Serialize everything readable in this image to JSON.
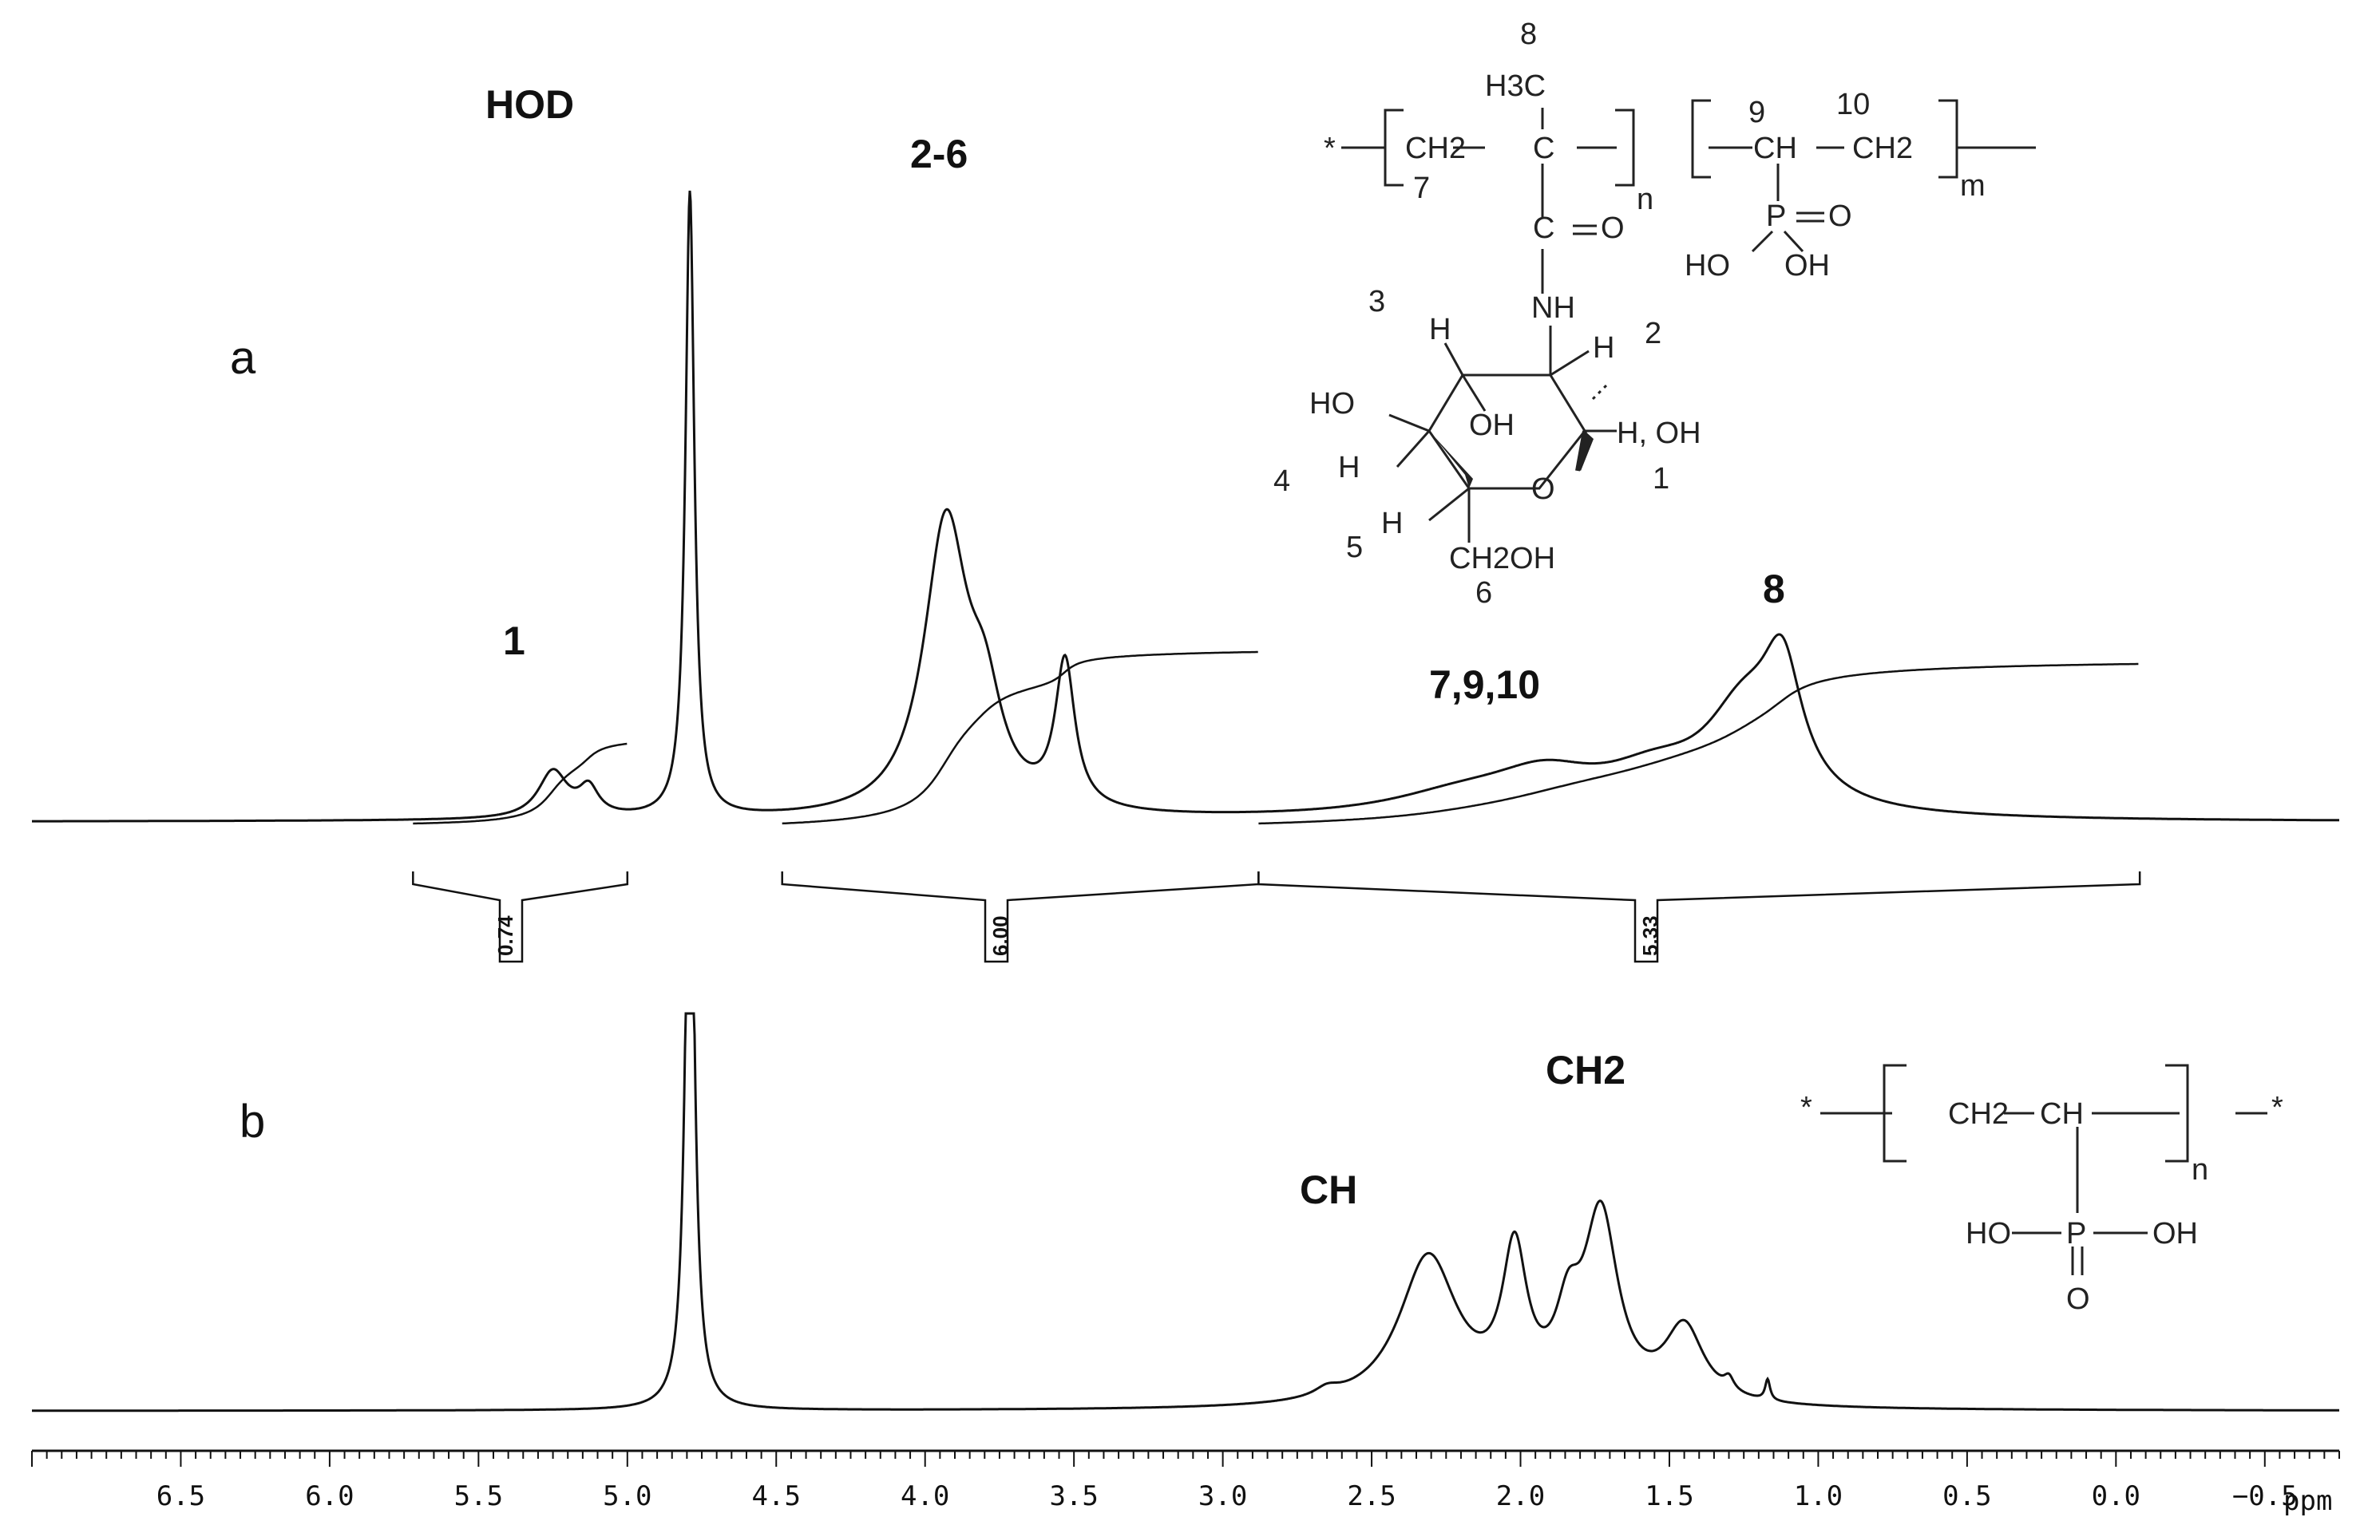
{
  "chart_data": {
    "type": "line",
    "title": "",
    "xlabel": "ppm",
    "ylabel": "",
    "x_reversed": true,
    "xlim": [
      7.0,
      -0.75
    ],
    "x_ticks": [
      "6.5",
      "6.0",
      "5.5",
      "5.0",
      "4.5",
      "4.0",
      "3.5",
      "3.0",
      "2.5",
      "2.0",
      "1.5",
      "1.0",
      "0.5",
      "0.0",
      "−0.5"
    ],
    "x_tick_values": [
      6.5,
      6.0,
      5.5,
      5.0,
      4.5,
      4.0,
      3.5,
      3.0,
      2.5,
      2.0,
      1.5,
      1.0,
      0.5,
      0.0,
      -0.5
    ],
    "grid": false,
    "panels": [
      {
        "label": "a",
        "baseline_ppm_range": [
          7.0,
          -0.75
        ],
        "peaks": [
          {
            "ppm": 5.25,
            "height": 0.12,
            "width": 0.06
          },
          {
            "ppm": 5.13,
            "height": 0.07,
            "width": 0.04
          },
          {
            "ppm": 4.79,
            "height": 1.6,
            "width": 0.018,
            "clipped": true
          },
          {
            "ppm": 3.93,
            "height": 0.74,
            "width": 0.09
          },
          {
            "ppm": 3.8,
            "height": 0.22,
            "width": 0.07
          },
          {
            "ppm": 3.53,
            "height": 0.37,
            "width": 0.04
          },
          {
            "ppm": 2.2,
            "height": 0.05,
            "width": 0.3
          },
          {
            "ppm": 1.92,
            "height": 0.09,
            "width": 0.22
          },
          {
            "ppm": 1.55,
            "height": 0.09,
            "width": 0.22
          },
          {
            "ppm": 1.25,
            "height": 0.24,
            "width": 0.16
          },
          {
            "ppm": 1.12,
            "height": 0.3,
            "width": 0.08
          }
        ],
        "peak_labels": [
          {
            "text": "HOD",
            "ppm": 5.38
          },
          {
            "text": "1",
            "ppm": 5.3
          },
          {
            "text": "2-6",
            "ppm": 3.93
          },
          {
            "text": "7,9,10",
            "ppm": 1.9
          },
          {
            "text": "8",
            "ppm": 1.1
          }
        ],
        "integrals": [
          {
            "from_ppm": 5.72,
            "to_ppm": 5.0,
            "value": "0.74"
          },
          {
            "from_ppm": 4.48,
            "to_ppm": 2.88,
            "value": "6.00"
          },
          {
            "from_ppm": 2.88,
            "to_ppm": -0.08,
            "value": "5.33"
          }
        ],
        "structure": {
          "atoms": [
            "8",
            "H3C",
            "C",
            "*",
            "CH2",
            "7",
            "n",
            "9",
            "10",
            "CH",
            "CH2",
            "m",
            "P",
            "O",
            "HO",
            "OH",
            "C",
            "O",
            "NH",
            "3",
            "H",
            "H",
            "2",
            "HO",
            "OH",
            "H, OH",
            "4",
            "H",
            "O",
            "1",
            "5",
            "H",
            "CH2OH",
            "6",
            "3",
            "2",
            "3",
            "2",
            "2",
            "2"
          ]
        }
      },
      {
        "label": "b",
        "peaks": [
          {
            "ppm": 4.79,
            "height": 1.6,
            "width": 0.018,
            "clipped": true
          },
          {
            "ppm": 2.65,
            "height": 0.02,
            "width": 0.05
          },
          {
            "ppm": 2.31,
            "height": 0.36,
            "width": 0.12
          },
          {
            "ppm": 2.02,
            "height": 0.34,
            "width": 0.05
          },
          {
            "ppm": 1.84,
            "height": 0.16,
            "width": 0.05
          },
          {
            "ppm": 1.73,
            "height": 0.44,
            "width": 0.07
          },
          {
            "ppm": 1.45,
            "height": 0.18,
            "width": 0.08
          },
          {
            "ppm": 1.3,
            "height": 0.03,
            "width": 0.02
          },
          {
            "ppm": 1.17,
            "height": 0.05,
            "width": 0.01
          }
        ],
        "peak_labels": [
          {
            "text": "CH",
            "ppm": 2.55
          },
          {
            "text": "CH2",
            "ppm": 1.65
          }
        ],
        "structure": {
          "atoms": [
            "*",
            "CH2",
            "CH",
            "*",
            "n",
            "HO",
            "P",
            "OH",
            "O",
            "2"
          ]
        }
      }
    ]
  }
}
